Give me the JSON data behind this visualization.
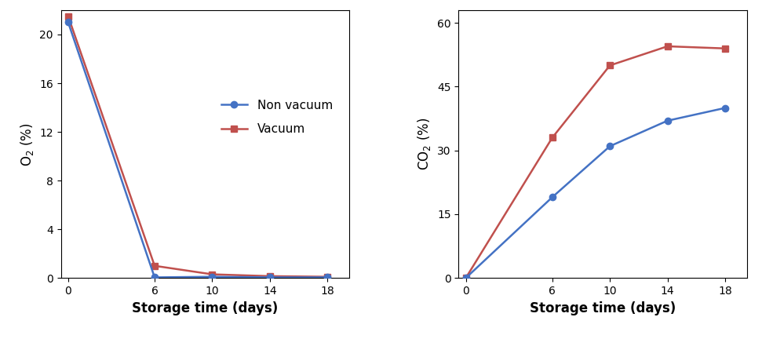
{
  "days": [
    0,
    6,
    10,
    14,
    18
  ],
  "o2_non_vacuum": [
    21.0,
    0.05,
    0.1,
    0.05,
    0.05
  ],
  "o2_vacuum": [
    21.5,
    1.0,
    0.3,
    0.15,
    0.1
  ],
  "co2_non_vacuum": [
    0.0,
    19.0,
    31.0,
    37.0,
    40.0
  ],
  "co2_vacuum": [
    0.0,
    33.0,
    50.0,
    54.5,
    54.0
  ],
  "blue_color": "#4472C4",
  "red_color": "#C0504D",
  "o2_ylabel": "O$_2$ (%)",
  "co2_ylabel": "CO$_2$ (%)",
  "xlabel": "Storage time (days)",
  "legend_non_vacuum": "Non vacuum",
  "legend_vacuum": "Vacuum",
  "o2_yticks": [
    0,
    4,
    8,
    12,
    16,
    20
  ],
  "o2_ylim": [
    0,
    22
  ],
  "co2_yticks": [
    0,
    15,
    30,
    45,
    60
  ],
  "co2_ylim": [
    0,
    63
  ],
  "xticks": [
    0,
    6,
    10,
    14,
    18
  ]
}
